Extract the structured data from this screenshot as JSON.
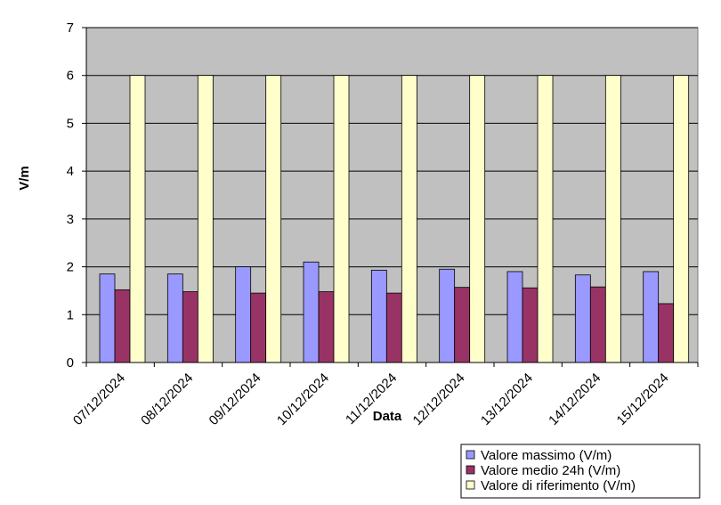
{
  "chart_data": {
    "type": "bar",
    "title": "",
    "xlabel": "Data",
    "ylabel": "V/m",
    "ylim": [
      0,
      7
    ],
    "yticks": [
      0,
      1,
      2,
      3,
      4,
      5,
      6,
      7
    ],
    "grid": true,
    "legend_position": "bottom-right",
    "plot_background": "#c0c0c0",
    "categories": [
      "07/12/2024",
      "08/12/2024",
      "09/12/2024",
      "10/12/2024",
      "11/12/2024",
      "12/12/2024",
      "13/12/2024",
      "14/12/2024",
      "15/12/2024"
    ],
    "series": [
      {
        "name": "Valore massimo (V/m)",
        "color": "#9999ff",
        "values": [
          1.85,
          1.85,
          2.0,
          2.1,
          1.93,
          1.95,
          1.9,
          1.83,
          1.9
        ]
      },
      {
        "name": "Valore medio 24h (V/m)",
        "color": "#993366",
        "values": [
          1.52,
          1.48,
          1.45,
          1.48,
          1.45,
          1.57,
          1.56,
          1.58,
          1.23
        ]
      },
      {
        "name": "Valore di riferimento (V/m)",
        "color": "#ffffcc",
        "values": [
          6,
          6,
          6,
          6,
          6,
          6,
          6,
          6,
          6
        ]
      }
    ]
  }
}
